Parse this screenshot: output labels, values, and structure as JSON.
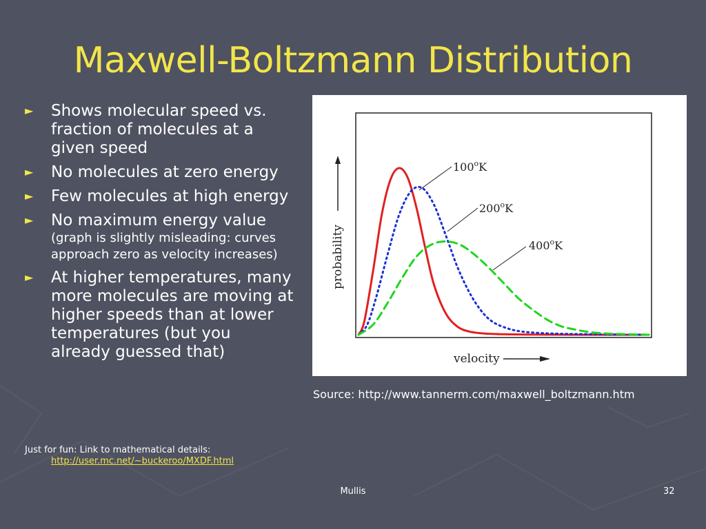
{
  "slide": {
    "title": "Maxwell-Boltzmann Distribution",
    "bullets": [
      {
        "main": "Shows molecular speed vs. fraction of molecules at a given speed",
        "sub": ""
      },
      {
        "main": "No molecules at zero energy",
        "sub": ""
      },
      {
        "main": "Few molecules at high energy",
        "sub": ""
      },
      {
        "main": "No maximum energy value",
        "sub": "(graph is slightly misleading: curves approach zero as velocity increases)"
      },
      {
        "main": "At higher temperatures, many more molecules are moving at higher speeds than at lower temperatures (but you already guessed that)",
        "sub": ""
      }
    ],
    "fun_text": "Just for fun:  Link to mathematical details:",
    "fun_link": "http://user.mc.net/~buckeroo/MXDF.html",
    "source": "Source:  http://www.tannerm.com/maxwell_boltzmann.htm",
    "footer_center": "Mullis",
    "page_number": "32",
    "colors": {
      "title": "#f2e64a",
      "background": "#4f5260",
      "link": "#f2e64a"
    }
  },
  "chart_data": {
    "type": "line",
    "title": "",
    "xlabel": "velocity",
    "ylabel": "probability",
    "xlim": [
      0,
      10
    ],
    "ylim": [
      0,
      1
    ],
    "grid": false,
    "series": [
      {
        "name": "100°K",
        "label_temp": "100",
        "label_unit": "K",
        "color": "#e02020",
        "dash": "solid",
        "x": [
          0,
          0.2,
          0.5,
          0.8,
          1.1,
          1.4,
          1.7,
          2.0,
          2.3,
          2.6,
          3.0,
          3.4,
          3.8,
          4.3,
          5.0,
          6.0,
          7.5,
          10
        ],
        "y": [
          0,
          0.08,
          0.38,
          0.72,
          0.93,
          1.0,
          0.94,
          0.76,
          0.52,
          0.3,
          0.13,
          0.05,
          0.02,
          0.008,
          0.003,
          0.001,
          0,
          0
        ]
      },
      {
        "name": "200°K",
        "label_temp": "200",
        "label_unit": "K",
        "color": "#1a2fd6",
        "dash": "dotted",
        "x": [
          0,
          0.3,
          0.6,
          1.0,
          1.4,
          1.8,
          2.2,
          2.6,
          3.0,
          3.4,
          3.8,
          4.2,
          4.6,
          5.1,
          5.6,
          6.3,
          7.2,
          8.5,
          10
        ],
        "y": [
          0,
          0.06,
          0.22,
          0.48,
          0.72,
          0.86,
          0.88,
          0.78,
          0.6,
          0.41,
          0.26,
          0.15,
          0.08,
          0.04,
          0.02,
          0.01,
          0.005,
          0.002,
          0
        ]
      },
      {
        "name": "400°K",
        "label_temp": "400",
        "label_unit": "K",
        "color": "#1ed61e",
        "dash": "dashed",
        "x": [
          0,
          0.5,
          1.0,
          1.5,
          2.0,
          2.5,
          3.0,
          3.5,
          4.0,
          4.5,
          5.0,
          5.5,
          6.0,
          6.5,
          7.0,
          7.5,
          8.0,
          8.5,
          9.0,
          10
        ],
        "y": [
          0,
          0.06,
          0.19,
          0.34,
          0.47,
          0.54,
          0.56,
          0.54,
          0.48,
          0.4,
          0.31,
          0.22,
          0.15,
          0.09,
          0.05,
          0.03,
          0.015,
          0.008,
          0.004,
          0
        ]
      }
    ]
  }
}
